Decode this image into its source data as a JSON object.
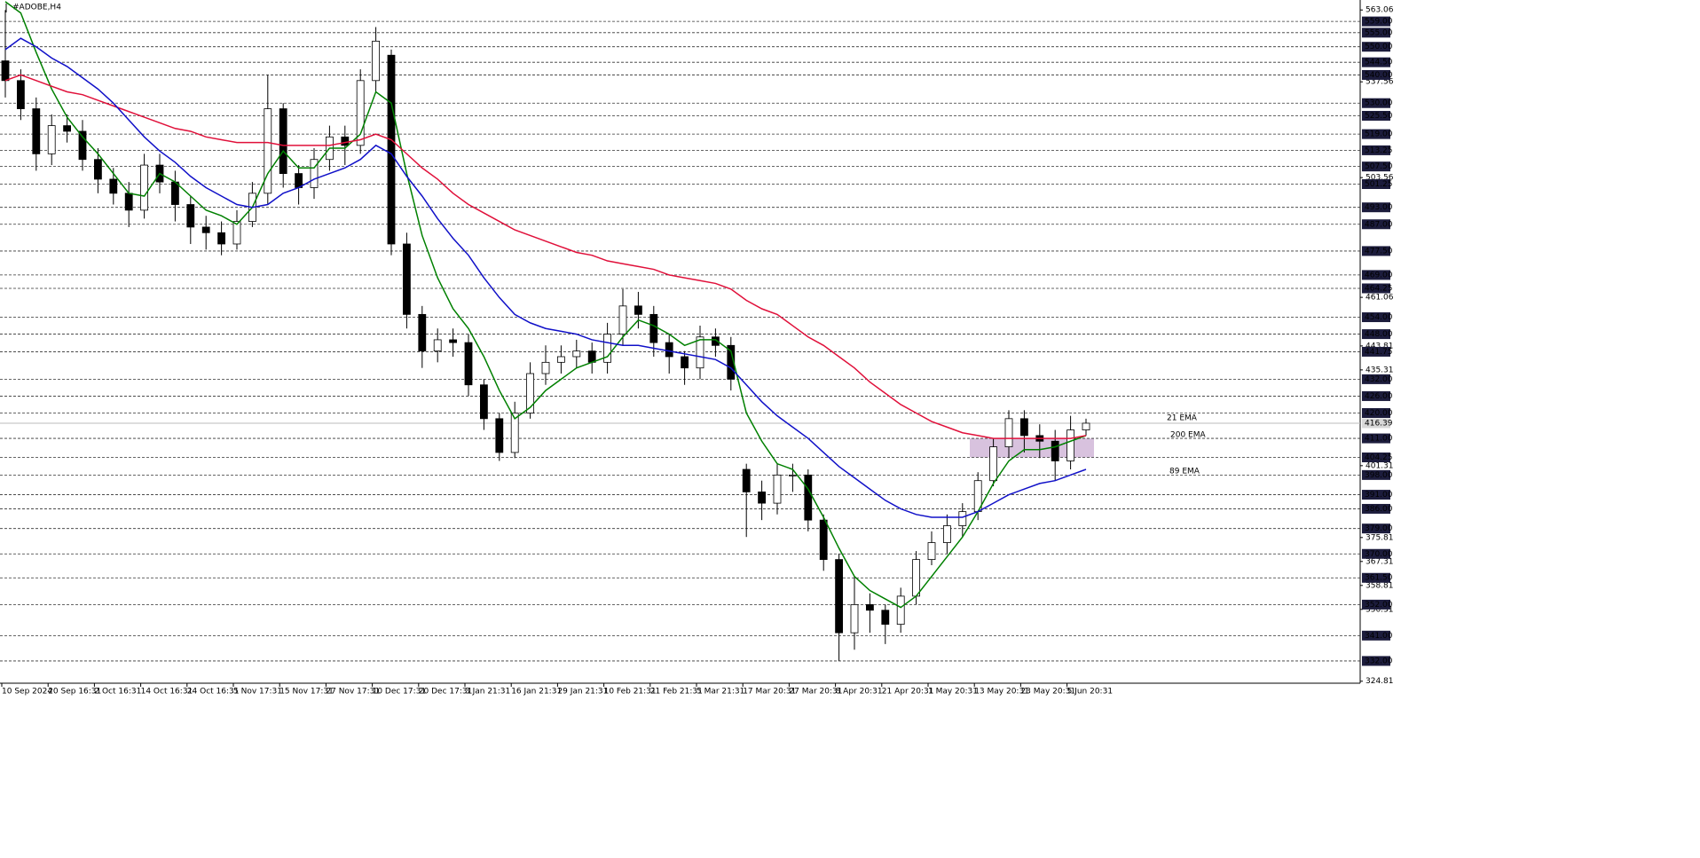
{
  "chart_data": {
    "type": "candlestick",
    "title": "#ADOBE,H4",
    "categories": [
      "10 Sep 2024",
      null,
      null,
      "20 Sep 16:31",
      null,
      null,
      "2 Oct 16:31",
      null,
      null,
      "14 Oct 16:31",
      null,
      null,
      "24 Oct 16:31",
      null,
      null,
      "5 Nov 17:31",
      null,
      null,
      "15 Nov 17:31",
      null,
      null,
      "27 Nov 17:31",
      null,
      null,
      "10 Dec 17:31",
      null,
      null,
      "20 Dec 17:31",
      null,
      null,
      "3 Jan 21:31",
      null,
      null,
      "16 Jan 21:31",
      null,
      null,
      "29 Jan 21:31",
      null,
      null,
      "10 Feb 21:31",
      null,
      null,
      "21 Feb 21:31",
      null,
      null,
      "5 Mar 21:31",
      null,
      null,
      "17 Mar 20:31",
      null,
      null,
      "27 Mar 20:31",
      null,
      null,
      "8 Apr 20:31",
      null,
      null,
      "21 Apr 20:31",
      null,
      null,
      "1 May 20:31",
      null,
      null,
      "13 May 20:31",
      null,
      null,
      "23 May 20:31",
      null,
      null,
      "5 Jun 20:31",
      null
    ],
    "open": [
      545,
      538,
      528,
      512,
      522,
      520,
      510,
      503,
      498,
      492,
      508,
      502,
      494,
      486,
      484,
      480,
      488,
      498,
      528,
      505,
      500,
      510,
      518,
      515,
      538,
      547,
      480,
      455,
      442,
      446,
      445,
      430,
      418,
      406,
      420,
      434,
      438,
      440,
      442,
      438,
      448,
      458,
      455,
      445,
      440,
      436,
      447,
      444,
      400,
      392,
      388,
      398,
      398,
      382,
      368,
      342,
      352,
      350,
      345,
      355,
      368,
      374,
      380,
      385,
      396,
      408,
      418,
      412,
      410,
      403,
      414
    ],
    "high": [
      563,
      542,
      532,
      526,
      526,
      524,
      514,
      507,
      502,
      512,
      512,
      506,
      497,
      490,
      488,
      492,
      502,
      540,
      530,
      508,
      514,
      522,
      522,
      542,
      557,
      549,
      484,
      458,
      450,
      450,
      448,
      432,
      420,
      424,
      438,
      444,
      444,
      446,
      445,
      452,
      464,
      463,
      458,
      448,
      442,
      451,
      450,
      447,
      402,
      396,
      402,
      402,
      400,
      384,
      370,
      362,
      356,
      352,
      358,
      371,
      378,
      384,
      388,
      399,
      411,
      421,
      421,
      416,
      414,
      419,
      418
    ],
    "low": [
      532,
      524,
      506,
      508,
      516,
      506,
      498,
      494,
      486,
      489,
      498,
      488,
      480,
      478,
      476,
      478,
      486,
      494,
      500,
      494,
      496,
      506,
      508,
      512,
      534,
      476,
      450,
      436,
      438,
      440,
      426,
      414,
      403,
      404,
      418,
      430,
      434,
      436,
      434,
      434,
      444,
      450,
      440,
      434,
      430,
      432,
      440,
      428,
      376,
      382,
      384,
      392,
      378,
      364,
      332,
      336,
      342,
      338,
      342,
      352,
      366,
      370,
      376,
      382,
      394,
      404,
      406,
      404,
      396,
      400,
      412
    ],
    "close": [
      538,
      528,
      512,
      522,
      520,
      510,
      503,
      498,
      492,
      508,
      502,
      494,
      486,
      484,
      480,
      488,
      498,
      528,
      505,
      500,
      510,
      518,
      515,
      538,
      552,
      480,
      455,
      442,
      446,
      445,
      430,
      418,
      406,
      420,
      434,
      438,
      440,
      442,
      438,
      448,
      458,
      455,
      445,
      440,
      436,
      447,
      444,
      432,
      392,
      388,
      398,
      398,
      382,
      368,
      342,
      352,
      350,
      345,
      355,
      368,
      374,
      380,
      385,
      396,
      408,
      418,
      412,
      410,
      403,
      414,
      416.39
    ],
    "series": [
      {
        "name": "21 EMA",
        "color": "#008000",
        "values": [
          566,
          562,
          548,
          535,
          525,
          518,
          512,
          505,
          498,
          497,
          505,
          502,
          497,
          492,
          490,
          487,
          493,
          505,
          513,
          507,
          507,
          514,
          514,
          519,
          534,
          530,
          505,
          483,
          468,
          457,
          450,
          440,
          428,
          418,
          422,
          428,
          432,
          436,
          438,
          440,
          447,
          453,
          451,
          448,
          444,
          446,
          446,
          442,
          420,
          410,
          402,
          400,
          393,
          383,
          372,
          362,
          357,
          354,
          351,
          355,
          362,
          369,
          376,
          385,
          395,
          403,
          407,
          407,
          408,
          410,
          412
        ]
      },
      {
        "name": "200 EMA",
        "color": "#e0103a",
        "values": [
          538,
          540,
          538,
          536,
          534,
          533,
          531,
          529,
          527,
          525,
          523,
          521,
          520,
          518,
          517,
          516,
          516,
          516,
          515,
          515,
          515,
          515,
          516,
          517,
          519,
          517,
          512,
          507,
          503,
          498,
          494,
          491,
          488,
          485,
          483,
          481,
          479,
          477,
          476,
          474,
          473,
          472,
          471,
          469,
          468,
          467,
          466,
          464,
          460,
          457,
          455,
          451,
          447,
          444,
          440,
          436,
          431,
          427,
          423,
          420,
          417,
          415,
          413,
          412,
          411,
          411,
          411,
          411,
          411,
          411,
          412
        ]
      },
      {
        "name": "89 EMA",
        "color": "#1010c8",
        "values": [
          549,
          553,
          550,
          546,
          543,
          539,
          535,
          530,
          524,
          518,
          513,
          509,
          504,
          500,
          497,
          494,
          493,
          494,
          498,
          500,
          503,
          505,
          507,
          510,
          515,
          512,
          504,
          497,
          489,
          482,
          476,
          468,
          461,
          455,
          452,
          450,
          449,
          448,
          446,
          445,
          444,
          444,
          443,
          442,
          441,
          440,
          439,
          436,
          430,
          424,
          419,
          415,
          411,
          406,
          401,
          397,
          393,
          389,
          386,
          384,
          383,
          383,
          383,
          385,
          388,
          391,
          393,
          395,
          396,
          398,
          400
        ]
      }
    ],
    "ylim": [
      324.1,
      566.6
    ],
    "yticks": [
      563.06,
      537.56,
      503.56,
      461.06,
      443.81,
      435.31,
      401.31,
      375.81,
      367.31,
      358.81,
      350.31,
      324.81
    ],
    "levels": [
      {
        "value": 559,
        "label": "559.00"
      },
      {
        "value": 555,
        "label": "555.00"
      },
      {
        "value": 550,
        "label": "550.00"
      },
      {
        "value": 544.5,
        "label": "544.50"
      },
      {
        "value": 540,
        "label": "540.00"
      },
      {
        "value": 530,
        "label": "530.00"
      },
      {
        "value": 525.5,
        "label": "525.50"
      },
      {
        "value": 519,
        "label": "519.00"
      },
      {
        "value": 513.25,
        "label": "513.25"
      },
      {
        "value": 507.5,
        "label": "507.50"
      },
      {
        "value": 501.25,
        "label": "501.25"
      },
      {
        "value": 493,
        "label": "493.00"
      },
      {
        "value": 487,
        "label": "487.00"
      },
      {
        "value": 477.5,
        "label": "477.50"
      },
      {
        "value": 469,
        "label": "469.00"
      },
      {
        "value": 464.25,
        "label": "464.25"
      },
      {
        "value": 454,
        "label": "454.00"
      },
      {
        "value": 448,
        "label": "448.00"
      },
      {
        "value": 441.75,
        "label": "441.75"
      },
      {
        "value": 432,
        "label": "432.00"
      },
      {
        "value": 426,
        "label": "426.00"
      },
      {
        "value": 420,
        "label": "420.00"
      },
      {
        "value": 411,
        "label": "411.00"
      },
      {
        "value": 404.25,
        "label": "404.25"
      },
      {
        "value": 398,
        "label": "398.00"
      },
      {
        "value": 391,
        "label": "391.00"
      },
      {
        "value": 386,
        "label": "386.00"
      },
      {
        "value": 379,
        "label": "379.00"
      },
      {
        "value": 370,
        "label": "370.00"
      },
      {
        "value": 361.5,
        "label": "361.50"
      },
      {
        "value": 352,
        "label": "352.00"
      },
      {
        "value": 341,
        "label": "341.00"
      },
      {
        "value": 332,
        "label": "332.00"
      }
    ],
    "last_price": 416.39,
    "zone": {
      "low": 404.25,
      "high": 411,
      "color": "#c8a8d0"
    }
  }
}
